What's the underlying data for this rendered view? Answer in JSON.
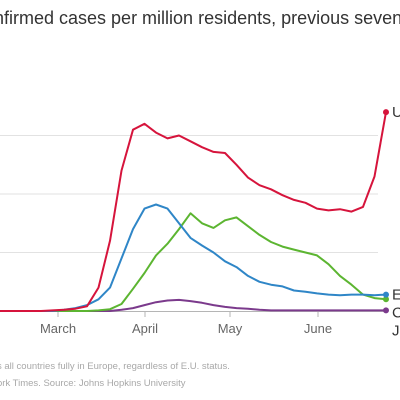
{
  "chart_data": {
    "type": "line",
    "title": "nfirmed cases per million residents, previous seven d",
    "x_tick_labels": [
      "March",
      "April",
      "May",
      "June"
    ],
    "x": [
      "Feb 12",
      "Feb 19",
      "Feb 26",
      "Mar 4",
      "Mar 8",
      "Mar 12",
      "Mar 16",
      "Mar 20",
      "Mar 24",
      "Mar 28",
      "Apr 1",
      "Apr 5",
      "Apr 9",
      "Apr 12",
      "Apr 16",
      "Apr 20",
      "Apr 24",
      "Apr 28",
      "May 2",
      "May 6",
      "May 10",
      "May 14",
      "May 18",
      "May 22",
      "May 26",
      "May 30",
      "Jun 3",
      "Jun 7",
      "Jun 11",
      "Jun 15",
      "Jun 19",
      "Jun 23",
      "Jun 27",
      "Jul 1",
      "Jul 4"
    ],
    "gridlines": [
      0,
      1,
      2,
      3
    ],
    "ylim": [
      0,
      4
    ],
    "series": [
      {
        "name": "U",
        "color": "#d6143c",
        "values": [
          0,
          0,
          0,
          0,
          0,
          0.01,
          0.02,
          0.04,
          0.08,
          0.4,
          1.2,
          2.4,
          3.1,
          3.2,
          3.05,
          2.95,
          3.0,
          2.9,
          2.8,
          2.72,
          2.7,
          2.5,
          2.28,
          2.15,
          2.08,
          1.98,
          1.9,
          1.85,
          1.75,
          1.72,
          1.74,
          1.7,
          1.78,
          2.3,
          3.4
        ]
      },
      {
        "name": "E",
        "color": "#2f86c7",
        "values": [
          0,
          0,
          0,
          0,
          0,
          0,
          0.02,
          0.05,
          0.1,
          0.2,
          0.4,
          0.9,
          1.4,
          1.75,
          1.82,
          1.75,
          1.5,
          1.25,
          1.12,
          1.0,
          0.85,
          0.75,
          0.6,
          0.5,
          0.45,
          0.42,
          0.35,
          0.33,
          0.3,
          0.28,
          0.27,
          0.28,
          0.28,
          0.27,
          0.28
        ]
      },
      {
        "name": "C",
        "color": "#5cb531",
        "values": [
          0,
          0,
          0,
          0,
          0,
          0,
          0,
          0,
          0,
          0.01,
          0.03,
          0.12,
          0.38,
          0.65,
          0.95,
          1.15,
          1.4,
          1.67,
          1.5,
          1.42,
          1.55,
          1.6,
          1.45,
          1.3,
          1.18,
          1.1,
          1.05,
          1.0,
          0.95,
          0.8,
          0.6,
          0.45,
          0.28,
          0.22,
          0.2
        ]
      },
      {
        "name": "J",
        "color": "#7b3a8c",
        "values": [
          0,
          0,
          0,
          0,
          0,
          0,
          0,
          0,
          0,
          0,
          0,
          0.02,
          0.05,
          0.1,
          0.15,
          0.18,
          0.19,
          0.17,
          0.14,
          0.1,
          0.07,
          0.05,
          0.04,
          0.02,
          0.01,
          0.01,
          0.01,
          0.01,
          0.01,
          0.01,
          0.01,
          0.01,
          0.01,
          0.01,
          0.01
        ]
      }
    ],
    "notes": [
      "s all countries fully in Europe, regardless of E.U. status.",
      "ork Times. Source: Johns Hopkins University"
    ]
  }
}
